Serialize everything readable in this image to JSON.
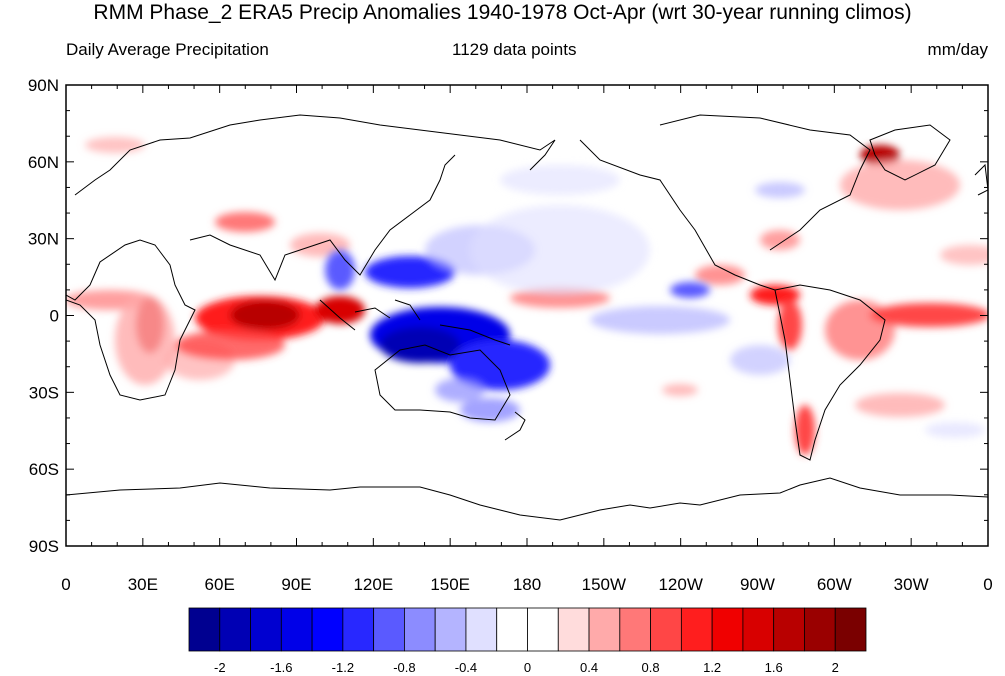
{
  "title": "RMM Phase_2 ERA5 Precip Anomalies 1940-1978 Oct-Apr (wrt 30-year running climos)",
  "subtitle_left": "Daily Average Precipitation",
  "subtitle_center": "1129 data points",
  "subtitle_right": "mm/day",
  "lat_ticks": [
    "90N",
    "60N",
    "30N",
    "0",
    "30S",
    "60S",
    "90S"
  ],
  "lon_ticks": [
    "0",
    "30E",
    "60E",
    "90E",
    "120E",
    "150E",
    "180",
    "150W",
    "120W",
    "90W",
    "60W",
    "30W",
    "0"
  ],
  "colorbar": {
    "colors": [
      "#000090",
      "#0000b4",
      "#0000d0",
      "#0000e8",
      "#0000ff",
      "#2828ff",
      "#5a5aff",
      "#8c8cff",
      "#b4b4ff",
      "#e0e0ff",
      "#ffffff",
      "#ffffff",
      "#ffdcdc",
      "#ffaaaa",
      "#ff7878",
      "#ff4646",
      "#ff1e1e",
      "#f00000",
      "#d80000",
      "#b80000",
      "#9a0000",
      "#7a0000"
    ],
    "labels": [
      "-2",
      "-1.6",
      "-1.2",
      "-0.8",
      "-0.4",
      "0",
      "0.4",
      "0.8",
      "1.2",
      "1.6",
      "2"
    ]
  }
}
